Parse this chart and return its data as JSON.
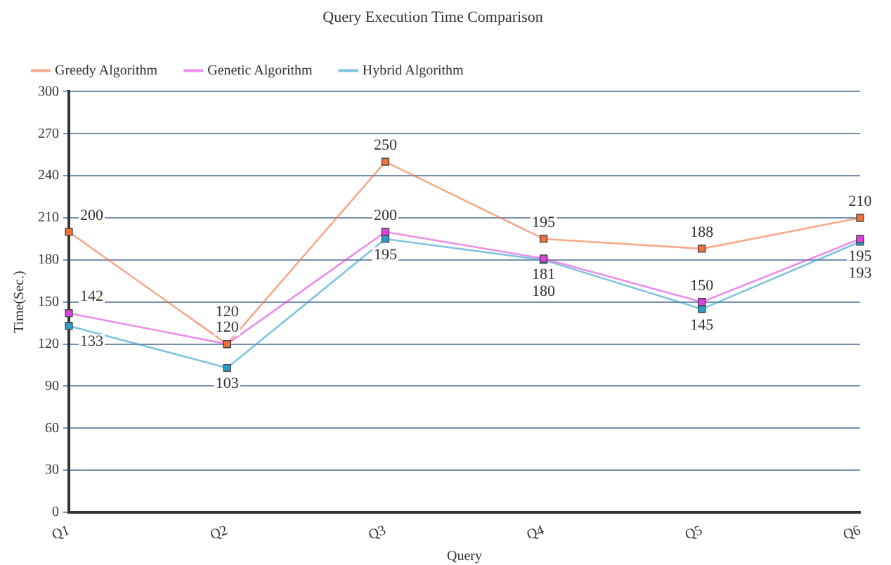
{
  "chart_data": {
    "type": "line",
    "title": "Query Execution Time Comparison",
    "xlabel": "Query",
    "ylabel": "Time(Sec.)",
    "categories": [
      "Q1",
      "Q2",
      "Q3",
      "Q4",
      "Q5",
      "Q6"
    ],
    "series": [
      {
        "name": "Greedy Algorithm",
        "color": "#f0703c",
        "values": [
          200,
          120,
          250,
          195,
          188,
          210
        ]
      },
      {
        "name": "Genetic Algorithm",
        "color": "#e040e0",
        "values": [
          142,
          120,
          200,
          181,
          150,
          195
        ]
      },
      {
        "name": "Hybrid Algorithm",
        "color": "#2a9cc8",
        "values": [
          133,
          103,
          195,
          180,
          145,
          193
        ]
      }
    ],
    "ylim": [
      0,
      300
    ],
    "yticks": [
      0,
      30,
      60,
      90,
      120,
      150,
      180,
      210,
      240,
      270,
      300
    ],
    "grid": "y",
    "legend": "top left",
    "marker": "square",
    "data_labels": true
  }
}
